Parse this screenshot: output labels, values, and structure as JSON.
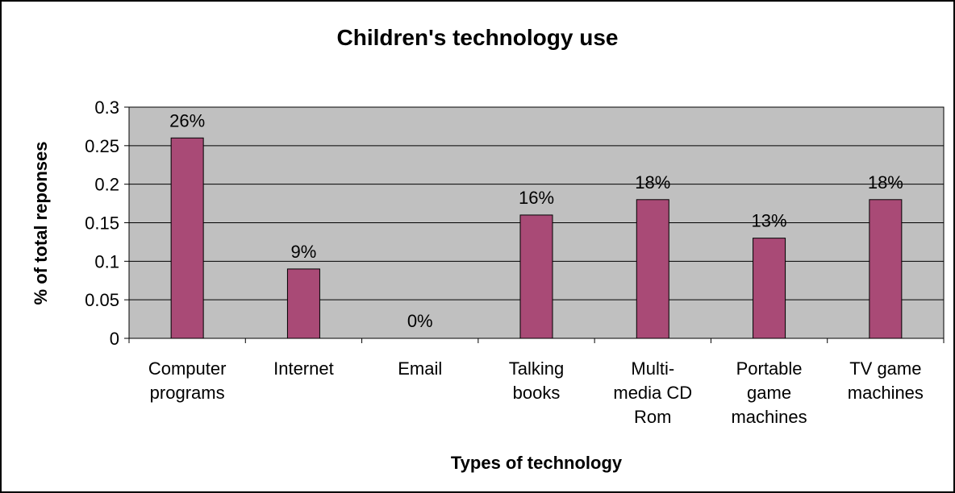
{
  "chart_data": {
    "type": "bar",
    "title": "Children's technology use",
    "xlabel": "Types of technology",
    "ylabel": "% of total reponses",
    "ylim": [
      0,
      0.3
    ],
    "yticks": [
      "0",
      "0.05",
      "0.1",
      "0.15",
      "0.2",
      "0.25",
      "0.3"
    ],
    "categories": [
      [
        "Computer",
        "programs"
      ],
      [
        "Internet"
      ],
      [
        "Email"
      ],
      [
        "Talking",
        "books"
      ],
      [
        "Multi-",
        "media CD",
        "Rom"
      ],
      [
        "Portable",
        "game",
        "machines"
      ],
      [
        "TV game",
        "machines"
      ]
    ],
    "values": [
      0.26,
      0.09,
      0.0,
      0.16,
      0.18,
      0.13,
      0.18
    ],
    "data_labels": [
      "26%",
      "9%",
      "0%",
      "16%",
      "18%",
      "13%",
      "18%"
    ],
    "grid": true,
    "legend": "none",
    "colors": {
      "bar": "#A94A76",
      "plot_background": "#C0C0C0",
      "gridline": "#000000",
      "border": "#000000"
    }
  }
}
